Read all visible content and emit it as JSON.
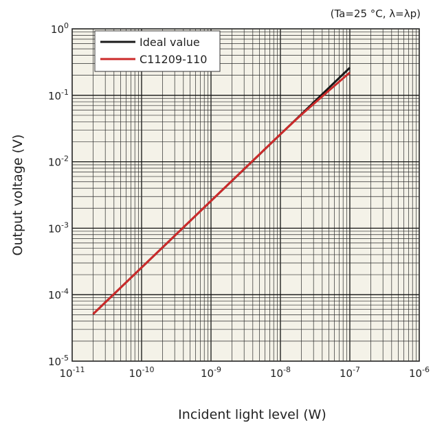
{
  "chart_data": {
    "type": "line",
    "title": "",
    "conditions": "(Ta=25 °C, λ=λp)",
    "xlabel": "Incident light level (W)",
    "ylabel": "Output voltage (V)",
    "x_scale": "log",
    "y_scale": "log",
    "xlim": [
      1e-11,
      1e-06
    ],
    "ylim": [
      1e-05,
      1
    ],
    "grid": true,
    "legend_position": "top-left",
    "x_ticks": [
      {
        "base": "10",
        "exp": "-11"
      },
      {
        "base": "10",
        "exp": "-10"
      },
      {
        "base": "10",
        "exp": "-9"
      },
      {
        "base": "10",
        "exp": "-8"
      },
      {
        "base": "10",
        "exp": "-7"
      },
      {
        "base": "10",
        "exp": "-6"
      }
    ],
    "y_ticks": [
      {
        "base": "10",
        "exp": "0"
      },
      {
        "base": "10",
        "exp": "-1"
      },
      {
        "base": "10",
        "exp": "-2"
      },
      {
        "base": "10",
        "exp": "-3"
      },
      {
        "base": "10",
        "exp": "-4"
      },
      {
        "base": "10",
        "exp": "-5"
      }
    ],
    "series": [
      {
        "name": "Ideal value",
        "color": "#1a1a1a",
        "x": [
          2e-11,
          1e-07
        ],
        "y": [
          5.1e-05,
          0.26
        ]
      },
      {
        "name": "C11209-110",
        "color": "#cc2a2a",
        "x": [
          2e-11,
          1e-08,
          2e-08,
          5e-08,
          1e-07
        ],
        "y": [
          5.1e-05,
          0.026,
          0.051,
          0.118,
          0.22
        ]
      }
    ]
  }
}
